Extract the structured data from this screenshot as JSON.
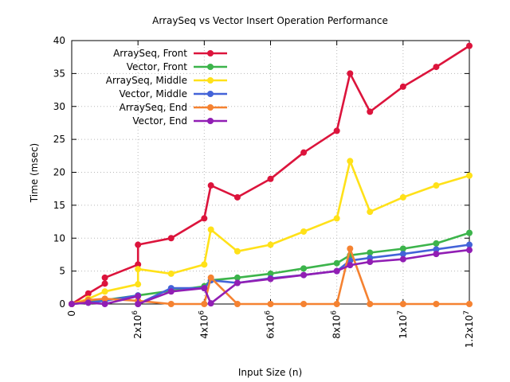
{
  "chart_data": {
    "type": "line",
    "title": "ArraySeq vs Vector Insert Operation Performance",
    "xlabel": "Input Size (n)",
    "ylabel": "Time (msec)",
    "xlim": [
      0,
      12000000
    ],
    "ylim": [
      0,
      40
    ],
    "grid": true,
    "legend_position": "top-left",
    "x_ticks": [
      {
        "value": 0,
        "label": "0"
      },
      {
        "value": 2000000,
        "label": "2x10",
        "exp": "6"
      },
      {
        "value": 4000000,
        "label": "4x10",
        "exp": "6"
      },
      {
        "value": 6000000,
        "label": "6x10",
        "exp": "6"
      },
      {
        "value": 8000000,
        "label": "8x10",
        "exp": "6"
      },
      {
        "value": 10000000,
        "label": "1x10",
        "exp": "7"
      },
      {
        "value": 12000000,
        "label": "1.2x10",
        "exp": "7"
      }
    ],
    "y_ticks": [
      0,
      5,
      10,
      15,
      20,
      25,
      30,
      35,
      40
    ],
    "series": [
      {
        "name": "ArraySeq, Front",
        "color": "#dc143c",
        "points": [
          [
            0,
            0
          ],
          [
            500000,
            1.6
          ],
          [
            1000000,
            3.1
          ],
          [
            1000000,
            4.0
          ],
          [
            2000000,
            6.0
          ],
          [
            2000000,
            9.0
          ],
          [
            3000000,
            10.0
          ],
          [
            4000000,
            13.0
          ],
          [
            4200000,
            18.0
          ],
          [
            5000000,
            16.2
          ],
          [
            6000000,
            19.0
          ],
          [
            7000000,
            23.0
          ],
          [
            8000000,
            26.3
          ],
          [
            8400000,
            35.0
          ],
          [
            9000000,
            29.2
          ],
          [
            10000000,
            33.0
          ],
          [
            11000000,
            36.0
          ],
          [
            12000000,
            39.2
          ]
        ]
      },
      {
        "name": "Vector, Front",
        "color": "#3cb44b",
        "points": [
          [
            0,
            0
          ],
          [
            500000,
            0.3
          ],
          [
            1000000,
            0.6
          ],
          [
            2000000,
            1.3
          ],
          [
            3000000,
            2.0
          ],
          [
            4000000,
            2.7
          ],
          [
            4200000,
            3.6
          ],
          [
            5000000,
            4.0
          ],
          [
            6000000,
            4.6
          ],
          [
            7000000,
            5.4
          ],
          [
            8000000,
            6.2
          ],
          [
            8400000,
            7.4
          ],
          [
            9000000,
            7.8
          ],
          [
            10000000,
            8.4
          ],
          [
            11000000,
            9.2
          ],
          [
            12000000,
            10.8
          ]
        ]
      },
      {
        "name": "ArraySeq, Middle",
        "color": "#ffe119",
        "points": [
          [
            0,
            0
          ],
          [
            500000,
            0.8
          ],
          [
            1000000,
            1.9
          ],
          [
            2000000,
            3.0
          ],
          [
            2000000,
            5.3
          ],
          [
            3000000,
            4.6
          ],
          [
            4000000,
            6.0
          ],
          [
            4200000,
            11.3
          ],
          [
            5000000,
            8.0
          ],
          [
            6000000,
            9.0
          ],
          [
            7000000,
            11.0
          ],
          [
            8000000,
            13.0
          ],
          [
            8400000,
            21.7
          ],
          [
            9000000,
            14.0
          ],
          [
            10000000,
            16.2
          ],
          [
            11000000,
            18.0
          ],
          [
            12000000,
            19.5
          ]
        ]
      },
      {
        "name": "Vector, Middle",
        "color": "#4363d8",
        "points": [
          [
            0,
            0
          ],
          [
            500000,
            0.2
          ],
          [
            1000000,
            0.5
          ],
          [
            2000000,
            1.3
          ],
          [
            2000000,
            0.0
          ],
          [
            3000000,
            2.4
          ],
          [
            4000000,
            2.4
          ],
          [
            4200000,
            3.6
          ],
          [
            5000000,
            3.2
          ],
          [
            6000000,
            3.9
          ],
          [
            7000000,
            4.4
          ],
          [
            8000000,
            5.0
          ],
          [
            8400000,
            6.6
          ],
          [
            9000000,
            7.0
          ],
          [
            10000000,
            7.6
          ],
          [
            11000000,
            8.3
          ],
          [
            12000000,
            9.0
          ]
        ]
      },
      {
        "name": "ArraySeq, End",
        "color": "#f58231",
        "points": [
          [
            0,
            0
          ],
          [
            500000,
            0.6
          ],
          [
            1000000,
            0.8
          ],
          [
            2000000,
            0.5
          ],
          [
            3000000,
            0.0
          ],
          [
            4000000,
            0.0
          ],
          [
            4200000,
            4.0
          ],
          [
            5000000,
            0.0
          ],
          [
            6000000,
            0.0
          ],
          [
            7000000,
            0.0
          ],
          [
            8000000,
            0.0
          ],
          [
            8400000,
            8.4
          ],
          [
            9000000,
            0.0
          ],
          [
            10000000,
            0.0
          ],
          [
            11000000,
            0.0
          ],
          [
            12000000,
            0.0
          ]
        ]
      },
      {
        "name": "Vector, End",
        "color": "#911eb4",
        "points": [
          [
            0,
            0
          ],
          [
            500000,
            0.2
          ],
          [
            1000000,
            0.0
          ],
          [
            2000000,
            1.2
          ],
          [
            2000000,
            0.0
          ],
          [
            3000000,
            1.9
          ],
          [
            4000000,
            2.4
          ],
          [
            4200000,
            0.1
          ],
          [
            5000000,
            3.2
          ],
          [
            6000000,
            3.8
          ],
          [
            7000000,
            4.4
          ],
          [
            8000000,
            5.0
          ],
          [
            8400000,
            5.9
          ],
          [
            9000000,
            6.4
          ],
          [
            10000000,
            6.8
          ],
          [
            11000000,
            7.6
          ],
          [
            12000000,
            8.2
          ]
        ]
      }
    ]
  }
}
